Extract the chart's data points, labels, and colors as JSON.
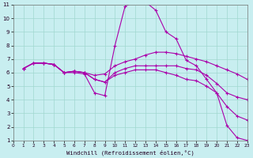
{
  "xlabel": "Windchill (Refroidissement éolien,°C)",
  "xlim": [
    0,
    23
  ],
  "ylim": [
    1,
    11
  ],
  "xtick_labels": [
    "0",
    "1",
    "2",
    "3",
    "4",
    "5",
    "6",
    "7",
    "8",
    "9",
    "10",
    "11",
    "12",
    "13",
    "14",
    "15",
    "16",
    "17",
    "18",
    "19",
    "20",
    "21",
    "22",
    "23"
  ],
  "ytick_labels": [
    "1",
    "2",
    "3",
    "4",
    "5",
    "6",
    "7",
    "8",
    "9",
    "10",
    "11"
  ],
  "background_color": "#c8eef0",
  "grid_color": "#a0d8d0",
  "line_color": "#aa00aa",
  "lines": [
    {
      "x": [
        1,
        2,
        3,
        4,
        5,
        6,
        7,
        8,
        9,
        10,
        11,
        12,
        13,
        14,
        15,
        16,
        17,
        18,
        19,
        20,
        21,
        22,
        23
      ],
      "y": [
        6.3,
        6.7,
        6.7,
        6.6,
        6.0,
        6.0,
        5.9,
        4.5,
        4.3,
        8.0,
        10.9,
        11.2,
        11.2,
        10.6,
        9.0,
        8.5,
        6.9,
        6.5,
        5.5,
        4.5,
        2.1,
        1.2,
        1.0
      ]
    },
    {
      "x": [
        1,
        2,
        3,
        4,
        5,
        6,
        7,
        8,
        9,
        10,
        11,
        12,
        13,
        14,
        15,
        16,
        17,
        18,
        19,
        20,
        21,
        22,
        23
      ],
      "y": [
        6.3,
        6.7,
        6.7,
        6.6,
        6.0,
        6.1,
        6.0,
        5.8,
        5.9,
        6.5,
        6.8,
        7.0,
        7.3,
        7.5,
        7.5,
        7.4,
        7.2,
        7.0,
        6.8,
        6.5,
        6.2,
        5.9,
        5.5
      ]
    },
    {
      "x": [
        1,
        2,
        3,
        4,
        5,
        6,
        7,
        8,
        9,
        10,
        11,
        12,
        13,
        14,
        15,
        16,
        17,
        18,
        19,
        20,
        21,
        22,
        23
      ],
      "y": [
        6.3,
        6.7,
        6.7,
        6.6,
        6.0,
        6.1,
        6.0,
        5.5,
        5.3,
        6.0,
        6.3,
        6.5,
        6.5,
        6.5,
        6.5,
        6.5,
        6.3,
        6.2,
        5.8,
        5.2,
        4.5,
        4.2,
        4.0
      ]
    },
    {
      "x": [
        1,
        2,
        3,
        4,
        5,
        6,
        7,
        8,
        9,
        10,
        11,
        12,
        13,
        14,
        15,
        16,
        17,
        18,
        19,
        20,
        21,
        22,
        23
      ],
      "y": [
        6.3,
        6.7,
        6.7,
        6.6,
        6.0,
        6.1,
        6.0,
        5.5,
        5.3,
        5.8,
        6.0,
        6.2,
        6.2,
        6.2,
        6.0,
        5.8,
        5.5,
        5.4,
        5.0,
        4.5,
        3.5,
        2.8,
        2.5
      ]
    }
  ]
}
